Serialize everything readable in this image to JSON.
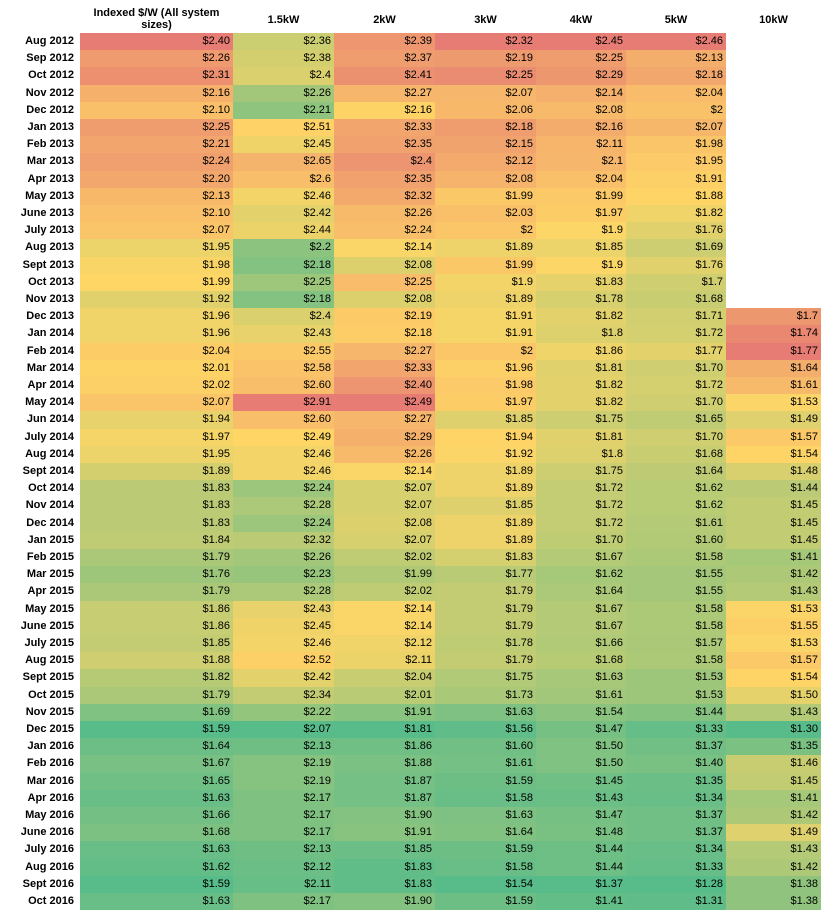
{
  "chart_data": {
    "type": "heatmap",
    "columns": [
      "Indexed $/W (All system sizes)",
      "1.5kW",
      "2kW",
      "3kW",
      "4kW",
      "5kW",
      "10kW"
    ],
    "rows": [
      {
        "label": "Aug 2012",
        "values": [
          "$2.40",
          "$2.36",
          "$2.39",
          "$2.32",
          "$2.45",
          "$2.46",
          ""
        ]
      },
      {
        "label": "Sep 2012",
        "values": [
          "$2.26",
          "$2.38",
          "$2.37",
          "$2.19",
          "$2.25",
          "$2.13",
          ""
        ]
      },
      {
        "label": "Oct 2012",
        "values": [
          "$2.31",
          "$2.4",
          "$2.41",
          "$2.25",
          "$2.29",
          "$2.18",
          ""
        ]
      },
      {
        "label": "Nov 2012",
        "values": [
          "$2.16",
          "$2.26",
          "$2.27",
          "$2.07",
          "$2.14",
          "$2.04",
          ""
        ]
      },
      {
        "label": "Dec 2012",
        "values": [
          "$2.10",
          "$2.21",
          "$2.16",
          "$2.06",
          "$2.08",
          "$2",
          ""
        ]
      },
      {
        "label": "Jan 2013",
        "values": [
          "$2.25",
          "$2.51",
          "$2.33",
          "$2.18",
          "$2.16",
          "$2.07",
          ""
        ]
      },
      {
        "label": "Feb 2013",
        "values": [
          "$2.21",
          "$2.45",
          "$2.35",
          "$2.15",
          "$2.11",
          "$1.98",
          ""
        ]
      },
      {
        "label": "Mar 2013",
        "values": [
          "$2.24",
          "$2.65",
          "$2.4",
          "$2.12",
          "$2.1",
          "$1.95",
          ""
        ]
      },
      {
        "label": "Apr 2013",
        "values": [
          "$2.20",
          "$2.6",
          "$2.35",
          "$2.08",
          "$2.04",
          "$1.91",
          ""
        ]
      },
      {
        "label": "May 2013",
        "values": [
          "$2.13",
          "$2.46",
          "$2.32",
          "$1.99",
          "$1.99",
          "$1.88",
          ""
        ]
      },
      {
        "label": "June 2013",
        "values": [
          "$2.10",
          "$2.42",
          "$2.26",
          "$2.03",
          "$1.97",
          "$1.82",
          ""
        ]
      },
      {
        "label": "July 2013",
        "values": [
          "$2.07",
          "$2.44",
          "$2.24",
          "$2",
          "$1.9",
          "$1.76",
          ""
        ]
      },
      {
        "label": "Aug 2013",
        "values": [
          "$1.95",
          "$2.2",
          "$2.14",
          "$1.89",
          "$1.85",
          "$1.69",
          ""
        ]
      },
      {
        "label": "Sept 2013",
        "values": [
          "$1.98",
          "$2.18",
          "$2.08",
          "$1.99",
          "$1.9",
          "$1.76",
          ""
        ]
      },
      {
        "label": "Oct 2013",
        "values": [
          "$1.99",
          "$2.25",
          "$2.25",
          "$1.9",
          "$1.83",
          "$1.7",
          ""
        ]
      },
      {
        "label": "Nov 2013",
        "values": [
          "$1.92",
          "$2.18",
          "$2.08",
          "$1.89",
          "$1.78",
          "$1.68",
          ""
        ]
      },
      {
        "label": "Dec 2013",
        "values": [
          "$1.96",
          "$2.4",
          "$2.19",
          "$1.91",
          "$1.82",
          "$1.71",
          "$1.7"
        ]
      },
      {
        "label": "Jan 2014",
        "values": [
          "$1.96",
          "$2.43",
          "$2.18",
          "$1.91",
          "$1.8",
          "$1.72",
          "$1.74"
        ]
      },
      {
        "label": "Feb 2014",
        "values": [
          "$2.04",
          "$2.55",
          "$2.27",
          "$2",
          "$1.86",
          "$1.77",
          "$1.77"
        ]
      },
      {
        "label": "Mar 2014",
        "values": [
          "$2.01",
          "$2.58",
          "$2.33",
          "$1.96",
          "$1.81",
          "$1.70",
          "$1.64"
        ]
      },
      {
        "label": "Apr 2014",
        "values": [
          "$2.02",
          "$2.60",
          "$2.40",
          "$1.98",
          "$1.82",
          "$1.72",
          "$1.61"
        ]
      },
      {
        "label": "May 2014",
        "values": [
          "$2.07",
          "$2.91",
          "$2.49",
          "$1.97",
          "$1.82",
          "$1.70",
          "$1.53"
        ]
      },
      {
        "label": "Jun 2014",
        "values": [
          "$1.94",
          "$2.60",
          "$2.27",
          "$1.85",
          "$1.75",
          "$1.65",
          "$1.49"
        ]
      },
      {
        "label": "July 2014",
        "values": [
          "$1.97",
          "$2.49",
          "$2.29",
          "$1.94",
          "$1.81",
          "$1.70",
          "$1.57"
        ]
      },
      {
        "label": "Aug 2014",
        "values": [
          "$1.95",
          "$2.46",
          "$2.26",
          "$1.92",
          "$1.8",
          "$1.68",
          "$1.54"
        ]
      },
      {
        "label": "Sept 2014",
        "values": [
          "$1.89",
          "$2.46",
          "$2.14",
          "$1.89",
          "$1.75",
          "$1.64",
          "$1.48"
        ]
      },
      {
        "label": "Oct 2014",
        "values": [
          "$1.83",
          "$2.24",
          "$2.07",
          "$1.89",
          "$1.72",
          "$1.62",
          "$1.44"
        ]
      },
      {
        "label": "Nov 2014",
        "values": [
          "$1.83",
          "$2.28",
          "$2.07",
          "$1.85",
          "$1.72",
          "$1.62",
          "$1.45"
        ]
      },
      {
        "label": "Dec 2014",
        "values": [
          "$1.83",
          "$2.24",
          "$2.08",
          "$1.89",
          "$1.72",
          "$1.61",
          "$1.45"
        ]
      },
      {
        "label": "Jan 2015",
        "values": [
          "$1.84",
          "$2.32",
          "$2.07",
          "$1.89",
          "$1.70",
          "$1.60",
          "$1.45"
        ]
      },
      {
        "label": "Feb 2015",
        "values": [
          "$1.79",
          "$2.26",
          "$2.02",
          "$1.83",
          "$1.67",
          "$1.58",
          "$1.41"
        ]
      },
      {
        "label": "Mar 2015",
        "values": [
          "$1.76",
          "$2.23",
          "$1.99",
          "$1.77",
          "$1.62",
          "$1.55",
          "$1.42"
        ]
      },
      {
        "label": "Apr 2015",
        "values": [
          "$1.79",
          "$2.28",
          "$2.02",
          "$1.79",
          "$1.64",
          "$1.55",
          "$1.43"
        ]
      },
      {
        "label": "May 2015",
        "values": [
          "$1.86",
          "$2.43",
          "$2.14",
          "$1.79",
          "$1.67",
          "$1.58",
          "$1.53"
        ]
      },
      {
        "label": "June 2015",
        "values": [
          "$1.86",
          "$2.45",
          "$2.14",
          "$1.79",
          "$1.67",
          "$1.58",
          "$1.55"
        ]
      },
      {
        "label": "July 2015",
        "values": [
          "$1.85",
          "$2.46",
          "$2.12",
          "$1.78",
          "$1.66",
          "$1.57",
          "$1.53"
        ]
      },
      {
        "label": "Aug 2015",
        "values": [
          "$1.88",
          "$2.52",
          "$2.11",
          "$1.79",
          "$1.68",
          "$1.58",
          "$1.57"
        ]
      },
      {
        "label": "Sept 2015",
        "values": [
          "$1.82",
          "$2.42",
          "$2.04",
          "$1.75",
          "$1.63",
          "$1.53",
          "$1.54"
        ]
      },
      {
        "label": "Oct 2015",
        "values": [
          "$1.79",
          "$2.34",
          "$2.01",
          "$1.73",
          "$1.61",
          "$1.53",
          "$1.50"
        ]
      },
      {
        "label": "Nov 2015",
        "values": [
          "$1.69",
          "$2.22",
          "$1.91",
          "$1.63",
          "$1.54",
          "$1.44",
          "$1.43"
        ]
      },
      {
        "label": "Dec 2015",
        "values": [
          "$1.59",
          "$2.07",
          "$1.81",
          "$1.56",
          "$1.47",
          "$1.33",
          "$1.30"
        ]
      },
      {
        "label": "Jan 2016",
        "values": [
          "$1.64",
          "$2.13",
          "$1.86",
          "$1.60",
          "$1.50",
          "$1.37",
          "$1.35"
        ]
      },
      {
        "label": "Feb 2016",
        "values": [
          "$1.67",
          "$2.19",
          "$1.88",
          "$1.61",
          "$1.50",
          "$1.40",
          "$1.46"
        ]
      },
      {
        "label": "Mar 2016",
        "values": [
          "$1.65",
          "$2.19",
          "$1.87",
          "$1.59",
          "$1.45",
          "$1.35",
          "$1.45"
        ]
      },
      {
        "label": "Apr 2016",
        "values": [
          "$1.63",
          "$2.17",
          "$1.87",
          "$1.58",
          "$1.43",
          "$1.34",
          "$1.41"
        ]
      },
      {
        "label": "May 2016",
        "values": [
          "$1.66",
          "$2.17",
          "$1.90",
          "$1.63",
          "$1.47",
          "$1.37",
          "$1.42"
        ]
      },
      {
        "label": "June 2016",
        "values": [
          "$1.68",
          "$2.17",
          "$1.91",
          "$1.64",
          "$1.48",
          "$1.37",
          "$1.49"
        ]
      },
      {
        "label": "July 2016",
        "values": [
          "$1.63",
          "$2.13",
          "$1.85",
          "$1.59",
          "$1.44",
          "$1.34",
          "$1.43"
        ]
      },
      {
        "label": "Aug 2016",
        "values": [
          "$1.62",
          "$2.12",
          "$1.83",
          "$1.58",
          "$1.44",
          "$1.33",
          "$1.42"
        ]
      },
      {
        "label": "Sept 2016",
        "values": [
          "$1.59",
          "$2.11",
          "$1.83",
          "$1.54",
          "$1.37",
          "$1.28",
          "$1.38"
        ]
      },
      {
        "label": "Oct 2016",
        "values": [
          "$1.63",
          "$2.17",
          "$1.90",
          "$1.59",
          "$1.41",
          "$1.31",
          "$1.38"
        ]
      }
    ],
    "color_scale": {
      "low": "#57bb8a",
      "mid": "#ffd666",
      "high": "#e67c73",
      "direction": "per-column, low value green to high value red"
    }
  }
}
